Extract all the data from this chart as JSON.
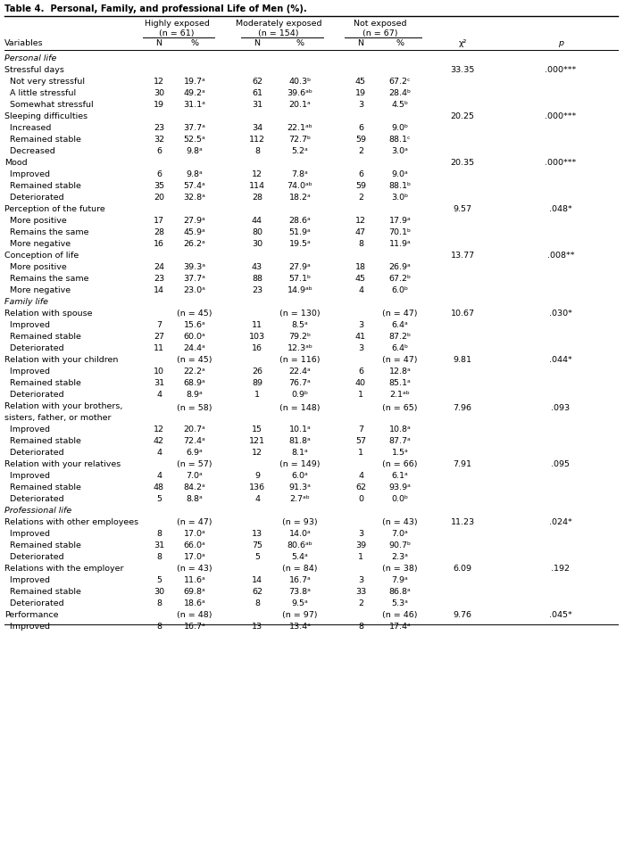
{
  "title": "Table 4.  Personal, Family, and professional Life of Men (%).",
  "rows": [
    {
      "label": "Personal life",
      "type": "section",
      "n1": "",
      "p1": "",
      "n2": "",
      "p2": "",
      "n3": "",
      "p3": "",
      "chi2": "",
      "pval": ""
    },
    {
      "label": "Stressful days",
      "type": "subsection",
      "n1": "",
      "p1": "",
      "n2": "",
      "p2": "",
      "n3": "",
      "p3": "",
      "chi2": "33.35",
      "pval": ".000***"
    },
    {
      "label": "  Not very stressful",
      "type": "data",
      "n1": "12",
      "p1": "19.7ᵃ",
      "n2": "62",
      "p2": "40.3ᵇ",
      "n3": "45",
      "p3": "67.2ᶜ",
      "chi2": "",
      "pval": ""
    },
    {
      "label": "  A little stressful",
      "type": "data",
      "n1": "30",
      "p1": "49.2ᵃ",
      "n2": "61",
      "p2": "39.6ᵃᵇ",
      "n3": "19",
      "p3": "28.4ᵇ",
      "chi2": "",
      "pval": ""
    },
    {
      "label": "  Somewhat stressful",
      "type": "data",
      "n1": "19",
      "p1": "31.1ᵃ",
      "n2": "31",
      "p2": "20.1ᵃ",
      "n3": "3",
      "p3": "4.5ᵇ",
      "chi2": "",
      "pval": ""
    },
    {
      "label": "Sleeping difficulties",
      "type": "subsection",
      "n1": "",
      "p1": "",
      "n2": "",
      "p2": "",
      "n3": "",
      "p3": "",
      "chi2": "20.25",
      "pval": ".000***"
    },
    {
      "label": "  Increased",
      "type": "data",
      "n1": "23",
      "p1": "37.7ᵃ",
      "n2": "34",
      "p2": "22.1ᵃᵇ",
      "n3": "6",
      "p3": "9.0ᵇ",
      "chi2": "",
      "pval": ""
    },
    {
      "label": "  Remained stable",
      "type": "data",
      "n1": "32",
      "p1": "52.5ᵃ",
      "n2": "112",
      "p2": "72.7ᵇ",
      "n3": "59",
      "p3": "88.1ᶜ",
      "chi2": "",
      "pval": ""
    },
    {
      "label": "  Decreased",
      "type": "data",
      "n1": "6",
      "p1": "9.8ᵃ",
      "n2": "8",
      "p2": "5.2ᵃ",
      "n3": "2",
      "p3": "3.0ᵃ",
      "chi2": "",
      "pval": ""
    },
    {
      "label": "Mood",
      "type": "subsection",
      "n1": "",
      "p1": "",
      "n2": "",
      "p2": "",
      "n3": "",
      "p3": "",
      "chi2": "20.35",
      "pval": ".000***"
    },
    {
      "label": "  Improved",
      "type": "data",
      "n1": "6",
      "p1": "9.8ᵃ",
      "n2": "12",
      "p2": "7.8ᵃ",
      "n3": "6",
      "p3": "9.0ᵃ",
      "chi2": "",
      "pval": ""
    },
    {
      "label": "  Remained stable",
      "type": "data",
      "n1": "35",
      "p1": "57.4ᵃ",
      "n2": "114",
      "p2": "74.0ᵃᵇ",
      "n3": "59",
      "p3": "88.1ᵇ",
      "chi2": "",
      "pval": ""
    },
    {
      "label": "  Deteriorated",
      "type": "data",
      "n1": "20",
      "p1": "32.8ᵃ",
      "n2": "28",
      "p2": "18.2ᵃ",
      "n3": "2",
      "p3": "3.0ᵇ",
      "chi2": "",
      "pval": ""
    },
    {
      "label": "Perception of the future",
      "type": "subsection",
      "n1": "",
      "p1": "",
      "n2": "",
      "p2": "",
      "n3": "",
      "p3": "",
      "chi2": "9.57",
      "pval": ".048*"
    },
    {
      "label": "  More positive",
      "type": "data",
      "n1": "17",
      "p1": "27.9ᵃ",
      "n2": "44",
      "p2": "28.6ᵃ",
      "n3": "12",
      "p3": "17.9ᵃ",
      "chi2": "",
      "pval": ""
    },
    {
      "label": "  Remains the same",
      "type": "data",
      "n1": "28",
      "p1": "45.9ᵃ",
      "n2": "80",
      "p2": "51.9ᵃ",
      "n3": "47",
      "p3": "70.1ᵇ",
      "chi2": "",
      "pval": ""
    },
    {
      "label": "  More negative",
      "type": "data",
      "n1": "16",
      "p1": "26.2ᵃ",
      "n2": "30",
      "p2": "19.5ᵃ",
      "n3": "8",
      "p3": "11.9ᵃ",
      "chi2": "",
      "pval": ""
    },
    {
      "label": "Conception of life",
      "type": "subsection",
      "n1": "",
      "p1": "",
      "n2": "",
      "p2": "",
      "n3": "",
      "p3": "",
      "chi2": "13.77",
      "pval": ".008**"
    },
    {
      "label": "  More positive",
      "type": "data",
      "n1": "24",
      "p1": "39.3ᵃ",
      "n2": "43",
      "p2": "27.9ᵃ",
      "n3": "18",
      "p3": "26.9ᵃ",
      "chi2": "",
      "pval": ""
    },
    {
      "label": "  Remains the same",
      "type": "data",
      "n1": "23",
      "p1": "37.7ᵃ",
      "n2": "88",
      "p2": "57.1ᵇ",
      "n3": "45",
      "p3": "67.2ᵇ",
      "chi2": "",
      "pval": ""
    },
    {
      "label": "  More negative",
      "type": "data",
      "n1": "14",
      "p1": "23.0ᵃ",
      "n2": "23",
      "p2": "14.9ᵃᵇ",
      "n3": "4",
      "p3": "6.0ᵇ",
      "chi2": "",
      "pval": ""
    },
    {
      "label": "Family life",
      "type": "section",
      "n1": "",
      "p1": "",
      "n2": "",
      "p2": "",
      "n3": "",
      "p3": "",
      "chi2": "",
      "pval": ""
    },
    {
      "label": "Relation with spouse",
      "type": "subsection_n",
      "n1": "",
      "p1": "(n = 45)",
      "n2": "",
      "p2": "(n = 130)",
      "n3": "",
      "p3": "(n = 47)",
      "chi2": "10.67",
      "pval": ".030*"
    },
    {
      "label": "  Improved",
      "type": "data",
      "n1": "7",
      "p1": "15.6ᵃ",
      "n2": "11",
      "p2": "8.5ᵃ",
      "n3": "3",
      "p3": "6.4ᵃ",
      "chi2": "",
      "pval": ""
    },
    {
      "label": "  Remained stable",
      "type": "data",
      "n1": "27",
      "p1": "60.0ᵃ",
      "n2": "103",
      "p2": "79.2ᵇ",
      "n3": "41",
      "p3": "87.2ᵇ",
      "chi2": "",
      "pval": ""
    },
    {
      "label": "  Deteriorated",
      "type": "data",
      "n1": "11",
      "p1": "24.4ᵃ",
      "n2": "16",
      "p2": "12.3ᵃᵇ",
      "n3": "3",
      "p3": "6.4ᵇ",
      "chi2": "",
      "pval": ""
    },
    {
      "label": "Relation with your children",
      "type": "subsection_n",
      "n1": "",
      "p1": "(n = 45)",
      "n2": "",
      "p2": "(n = 116)",
      "n3": "",
      "p3": "(n = 47)",
      "chi2": "9.81",
      "pval": ".044*"
    },
    {
      "label": "  Improved",
      "type": "data",
      "n1": "10",
      "p1": "22.2ᵃ",
      "n2": "26",
      "p2": "22.4ᵃ",
      "n3": "6",
      "p3": "12.8ᵃ",
      "chi2": "",
      "pval": ""
    },
    {
      "label": "  Remained stable",
      "type": "data",
      "n1": "31",
      "p1": "68.9ᵃ",
      "n2": "89",
      "p2": "76.7ᵃ",
      "n3": "40",
      "p3": "85.1ᵃ",
      "chi2": "",
      "pval": ""
    },
    {
      "label": "  Deteriorated",
      "type": "data",
      "n1": "4",
      "p1": "8.9ᵃ",
      "n2": "1",
      "p2": "0.9ᵇ",
      "n3": "1",
      "p3": "2.1ᵃᵇ",
      "chi2": "",
      "pval": ""
    },
    {
      "label": "Relation with your brothers,",
      "label2": "sisters, father, or mother",
      "type": "subsection_n2",
      "n1": "",
      "p1": "(n = 58)",
      "n2": "",
      "p2": "(n = 148)",
      "n3": "",
      "p3": "(n = 65)",
      "chi2": "7.96",
      "pval": ".093"
    },
    {
      "label": "  Improved",
      "type": "data",
      "n1": "12",
      "p1": "20.7ᵃ",
      "n2": "15",
      "p2": "10.1ᵃ",
      "n3": "7",
      "p3": "10.8ᵃ",
      "chi2": "",
      "pval": ""
    },
    {
      "label": "  Remained stable",
      "type": "data",
      "n1": "42",
      "p1": "72.4ᵃ",
      "n2": "121",
      "p2": "81.8ᵃ",
      "n3": "57",
      "p3": "87.7ᵃ",
      "chi2": "",
      "pval": ""
    },
    {
      "label": "  Deteriorated",
      "type": "data",
      "n1": "4",
      "p1": "6.9ᵃ",
      "n2": "12",
      "p2": "8.1ᵃ",
      "n3": "1",
      "p3": "1.5ᵃ",
      "chi2": "",
      "pval": ""
    },
    {
      "label": "Relation with your relatives",
      "type": "subsection_n",
      "n1": "",
      "p1": "(n = 57)",
      "n2": "",
      "p2": "(n = 149)",
      "n3": "",
      "p3": "(n = 66)",
      "chi2": "7.91",
      "pval": ".095"
    },
    {
      "label": "  Improved",
      "type": "data",
      "n1": "4",
      "p1": "7.0ᵃ",
      "n2": "9",
      "p2": "6.0ᵃ",
      "n3": "4",
      "p3": "6.1ᵃ",
      "chi2": "",
      "pval": ""
    },
    {
      "label": "  Remained stable",
      "type": "data",
      "n1": "48",
      "p1": "84.2ᵃ",
      "n2": "136",
      "p2": "91.3ᵃ",
      "n3": "62",
      "p3": "93.9ᵃ",
      "chi2": "",
      "pval": ""
    },
    {
      "label": "  Deteriorated",
      "type": "data",
      "n1": "5",
      "p1": "8.8ᵃ",
      "n2": "4",
      "p2": "2.7ᵃᵇ",
      "n3": "0",
      "p3": "0.0ᵇ",
      "chi2": "",
      "pval": ""
    },
    {
      "label": "Professional life",
      "type": "section",
      "n1": "",
      "p1": "",
      "n2": "",
      "p2": "",
      "n3": "",
      "p3": "",
      "chi2": "",
      "pval": ""
    },
    {
      "label": "Relations with other employees",
      "type": "subsection_n",
      "n1": "",
      "p1": "(n = 47)",
      "n2": "",
      "p2": "(n = 93)",
      "n3": "",
      "p3": "(n = 43)",
      "chi2": "11.23",
      "pval": ".024*"
    },
    {
      "label": "  Improved",
      "type": "data",
      "n1": "8",
      "p1": "17.0ᵃ",
      "n2": "13",
      "p2": "14.0ᵃ",
      "n3": "3",
      "p3": "7.0ᵃ",
      "chi2": "",
      "pval": ""
    },
    {
      "label": "  Remained stable",
      "type": "data",
      "n1": "31",
      "p1": "66.0ᵃ",
      "n2": "75",
      "p2": "80.6ᵃᵇ",
      "n3": "39",
      "p3": "90.7ᵇ",
      "chi2": "",
      "pval": ""
    },
    {
      "label": "  Deteriorated",
      "type": "data",
      "n1": "8",
      "p1": "17.0ᵃ",
      "n2": "5",
      "p2": "5.4ᵃ",
      "n3": "1",
      "p3": "2.3ᵃ",
      "chi2": "",
      "pval": ""
    },
    {
      "label": "Relations with the employer",
      "type": "subsection_n",
      "n1": "",
      "p1": "(n = 43)",
      "n2": "",
      "p2": "(n = 84)",
      "n3": "",
      "p3": "(n = 38)",
      "chi2": "6.09",
      "pval": ".192"
    },
    {
      "label": "  Improved",
      "type": "data",
      "n1": "5",
      "p1": "11.6ᵃ",
      "n2": "14",
      "p2": "16.7ᵃ",
      "n3": "3",
      "p3": "7.9ᵃ",
      "chi2": "",
      "pval": ""
    },
    {
      "label": "  Remained stable",
      "type": "data",
      "n1": "30",
      "p1": "69.8ᵃ",
      "n2": "62",
      "p2": "73.8ᵃ",
      "n3": "33",
      "p3": "86.8ᵃ",
      "chi2": "",
      "pval": ""
    },
    {
      "label": "  Deteriorated",
      "type": "data",
      "n1": "8",
      "p1": "18.6ᵃ",
      "n2": "8",
      "p2": "9.5ᵃ",
      "n3": "2",
      "p3": "5.3ᵃ",
      "chi2": "",
      "pval": ""
    },
    {
      "label": "Performance",
      "type": "subsection_n",
      "n1": "",
      "p1": "(n = 48)",
      "n2": "",
      "p2": "(n = 97)",
      "n3": "",
      "p3": "(n = 46)",
      "chi2": "9.76",
      "pval": ".045*"
    },
    {
      "label": "  Improved",
      "type": "data",
      "n1": "8",
      "p1": "16.7ᵃ",
      "n2": "13",
      "p2": "13.4ᵃ",
      "n3": "8",
      "p3": "17.4ᵃ",
      "chi2": "",
      "pval": ""
    }
  ],
  "bg_color": "#ffffff",
  "text_color": "#000000",
  "font_size": 6.8,
  "title_font_size": 7.2
}
